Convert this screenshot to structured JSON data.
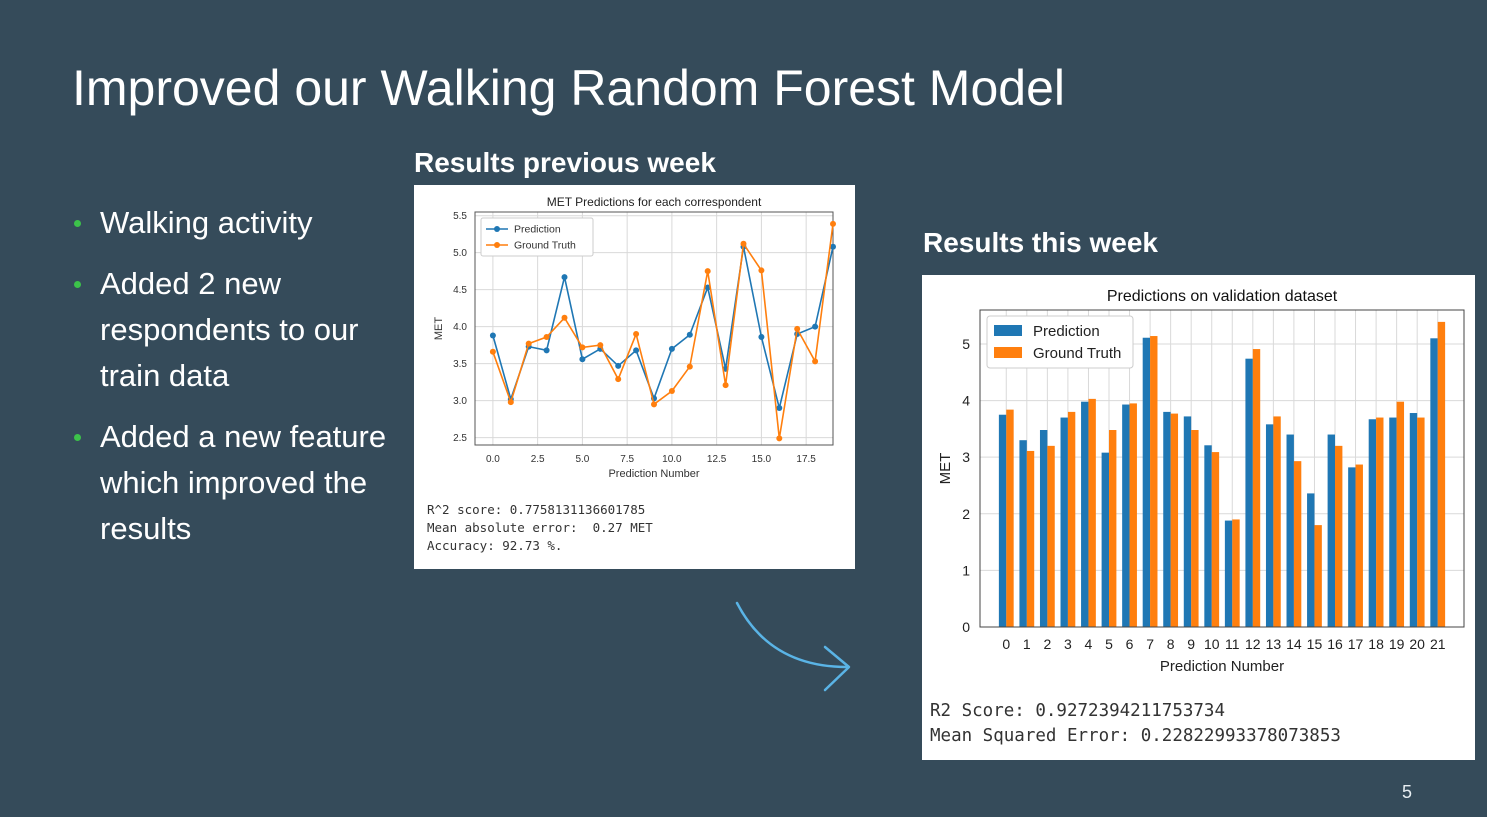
{
  "slide": {
    "title": "Improved our Walking Random Forest Model",
    "page_number": "5",
    "bullets": [
      "Walking activity",
      "Added 2 new respondents to our train data",
      "Added a new feature which improved the results"
    ],
    "prev_label": "Results previous week",
    "this_label": "Results this week",
    "prev_metrics": [
      "R^2 score: 0.7758131136601785",
      "Mean absolute error:  0.27 MET",
      "Accuracy: 92.73 %."
    ],
    "this_metrics": [
      "R2 Score: 0.9272394211753734",
      "Mean Squared Error: 0.22822993378073853"
    ],
    "colors": {
      "background": "#354b5a",
      "bullet": "#3cc24a",
      "prediction": "#1f77b4",
      "ground_truth": "#ff7f0e",
      "arrow": "#5ab4e6"
    }
  },
  "chart_data": [
    {
      "type": "line",
      "title": "MET Predictions for each correspondent",
      "xlabel": "Prediction Number",
      "ylabel": "MET",
      "xlim": [
        -1,
        19
      ],
      "ylim": [
        2.4,
        5.55
      ],
      "xticks": [
        "0.0",
        "2.5",
        "5.0",
        "7.5",
        "10.0",
        "12.5",
        "15.0",
        "17.5"
      ],
      "yticks": [
        "2.5",
        "3.0",
        "3.5",
        "4.0",
        "4.5",
        "5.0",
        "5.5"
      ],
      "grid": true,
      "legend": "top-left",
      "x": [
        0,
        1,
        2,
        3,
        4,
        5,
        6,
        7,
        8,
        9,
        10,
        11,
        12,
        13,
        14,
        15,
        16,
        17,
        18,
        19
      ],
      "series": [
        {
          "name": "Prediction",
          "values": [
            3.88,
            3.02,
            3.73,
            3.68,
            4.67,
            3.56,
            3.7,
            3.47,
            3.68,
            3.03,
            3.7,
            3.89,
            4.53,
            3.43,
            5.08,
            3.86,
            2.9,
            3.9,
            4.0,
            5.08
          ]
        },
        {
          "name": "Ground Truth",
          "values": [
            3.66,
            2.98,
            3.77,
            3.86,
            4.12,
            3.72,
            3.75,
            3.29,
            3.9,
            2.95,
            3.13,
            3.46,
            4.75,
            3.21,
            5.12,
            4.76,
            2.49,
            3.97,
            3.53,
            5.39
          ]
        }
      ]
    },
    {
      "type": "bar",
      "title": "Predictions on validation dataset",
      "xlabel": "Prediction Number",
      "ylabel": "MET",
      "ylim": [
        0,
        5.6
      ],
      "yticks": [
        "0",
        "1",
        "2",
        "3",
        "4",
        "5"
      ],
      "grid": true,
      "legend": "top-left",
      "categories": [
        "0",
        "1",
        "2",
        "3",
        "4",
        "5",
        "6",
        "7",
        "8",
        "9",
        "10",
        "11",
        "12",
        "13",
        "14",
        "15",
        "16",
        "17",
        "18",
        "19",
        "20",
        "21"
      ],
      "series": [
        {
          "name": "Prediction",
          "values": [
            3.75,
            3.3,
            3.48,
            3.7,
            3.98,
            3.08,
            3.93,
            5.11,
            3.8,
            3.72,
            3.21,
            1.88,
            4.74,
            3.58,
            3.4,
            2.36,
            3.4,
            2.82,
            3.67,
            3.7,
            3.78,
            5.1
          ]
        },
        {
          "name": "Ground Truth",
          "values": [
            3.84,
            3.11,
            3.2,
            3.8,
            4.03,
            3.48,
            3.95,
            5.14,
            3.77,
            3.48,
            3.09,
            1.9,
            4.91,
            3.72,
            2.93,
            1.8,
            3.2,
            2.87,
            3.7,
            3.98,
            3.7,
            5.39
          ]
        }
      ]
    }
  ]
}
